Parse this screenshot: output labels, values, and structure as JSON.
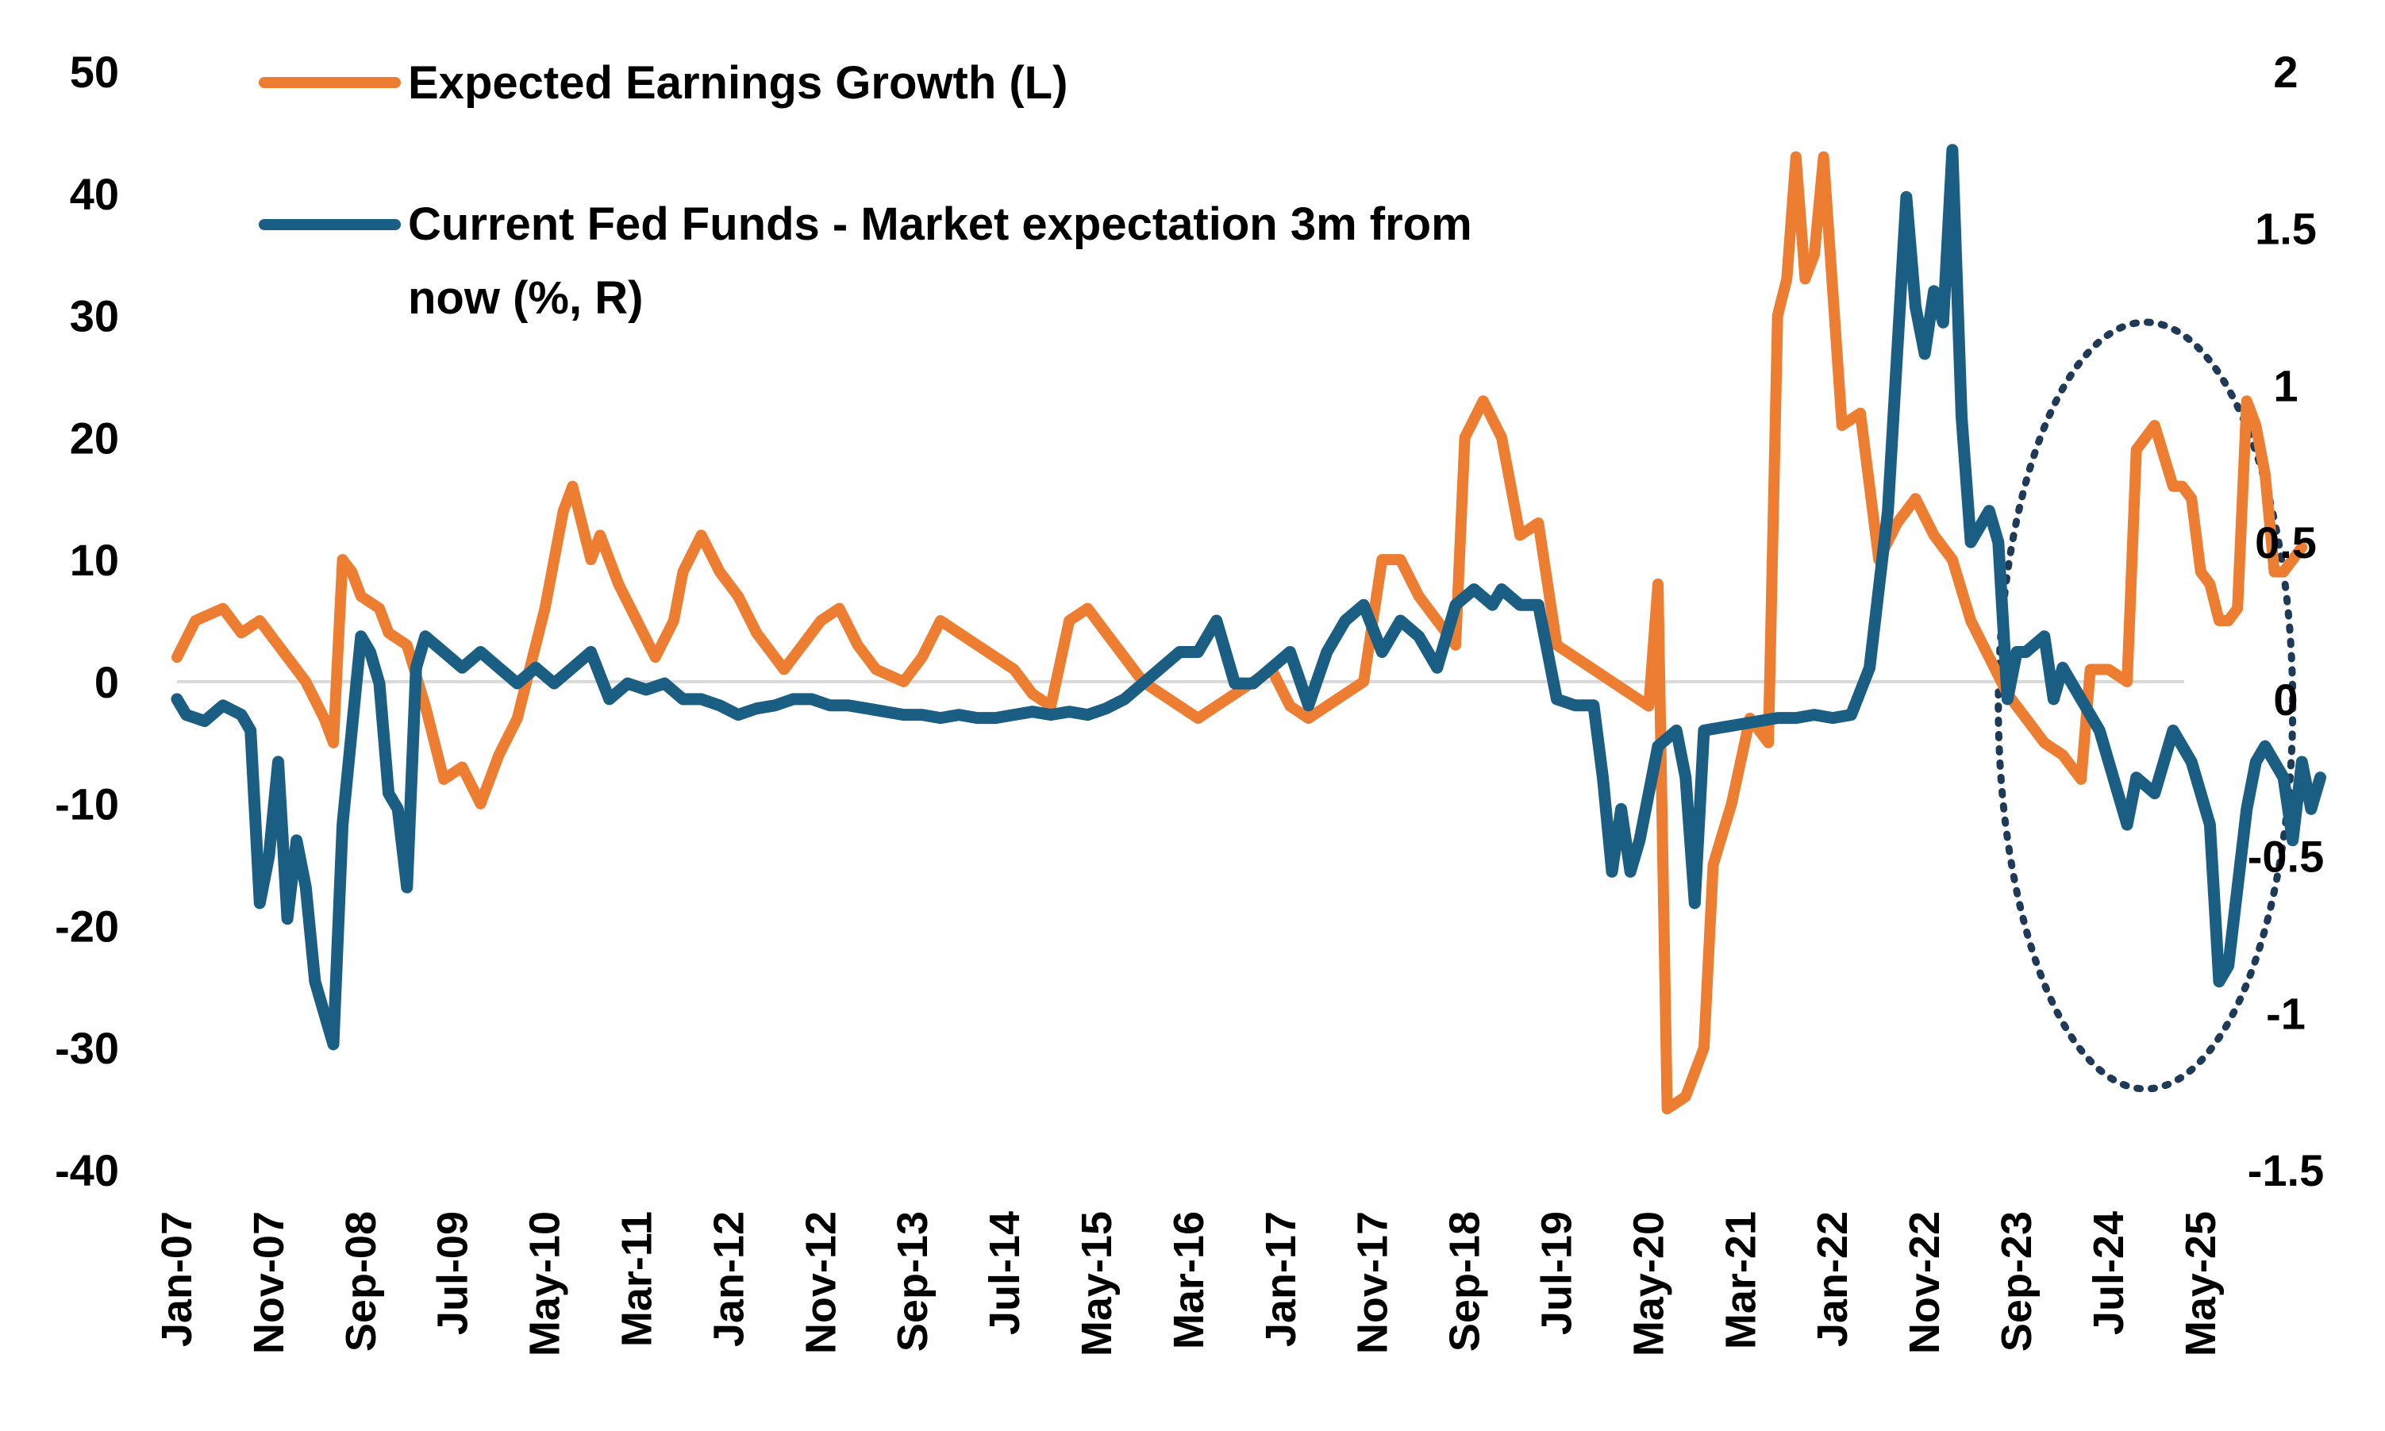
{
  "chart_data": {
    "type": "line",
    "legend_position": "top-left",
    "grid": false,
    "x_start": "Jan-07",
    "x_end": "Jul-25",
    "x_tick_labels": [
      "Jan-07",
      "Nov-07",
      "Sep-08",
      "Jul-09",
      "May-10",
      "Mar-11",
      "Jan-12",
      "Nov-12",
      "Sep-13",
      "Jul-14",
      "May-15",
      "Mar-16",
      "Jan-17",
      "Nov-17",
      "Sep-18",
      "Jul-19",
      "May-20",
      "Mar-21",
      "Jan-22",
      "Nov-22",
      "Sep-23",
      "Jul-24",
      "May-25"
    ],
    "y_left": {
      "min": -40,
      "max": 50,
      "ticks": [
        "50",
        "40",
        "30",
        "20",
        "10",
        "0",
        "-10",
        "-20",
        "-30",
        "-40"
      ]
    },
    "y_right": {
      "min": -1.5,
      "max": 2,
      "ticks": [
        "2",
        "1.5",
        "1",
        "0.5",
        "0",
        "-0.5",
        "-1",
        "-1.5"
      ]
    },
    "series": [
      {
        "name": "Expected Earnings Growth (L)",
        "axis": "left",
        "color": "#ED7D31",
        "points": [
          [
            "Jan-07",
            2
          ],
          [
            "Mar-07",
            5
          ],
          [
            "Jun-07",
            6
          ],
          [
            "Aug-07",
            4
          ],
          [
            "Oct-07",
            5
          ],
          [
            "Dec-07",
            3
          ],
          [
            "Mar-08",
            0
          ],
          [
            "May-08",
            -3
          ],
          [
            "Jun-08",
            -5
          ],
          [
            "Jul-08",
            10
          ],
          [
            "Aug-08",
            9
          ],
          [
            "Sep-08",
            7
          ],
          [
            "Nov-08",
            6
          ],
          [
            "Dec-08",
            4
          ],
          [
            "Feb-09",
            3
          ],
          [
            "Apr-09",
            -2
          ],
          [
            "Jun-09",
            -8
          ],
          [
            "Aug-09",
            -7
          ],
          [
            "Oct-09",
            -10
          ],
          [
            "Dec-09",
            -6
          ],
          [
            "Feb-10",
            -3
          ],
          [
            "May-10",
            6
          ],
          [
            "Jul-10",
            14
          ],
          [
            "Aug-10",
            16
          ],
          [
            "Oct-10",
            10
          ],
          [
            "Nov-10",
            12
          ],
          [
            "Jan-11",
            8
          ],
          [
            "Mar-11",
            5
          ],
          [
            "May-11",
            2
          ],
          [
            "Jul-11",
            5
          ],
          [
            "Aug-11",
            9
          ],
          [
            "Oct-11",
            12
          ],
          [
            "Dec-11",
            9
          ],
          [
            "Feb-12",
            7
          ],
          [
            "Apr-12",
            4
          ],
          [
            "Jul-12",
            1
          ],
          [
            "Sep-12",
            3
          ],
          [
            "Nov-12",
            5
          ],
          [
            "Jan-13",
            6
          ],
          [
            "Mar-13",
            3
          ],
          [
            "May-13",
            1
          ],
          [
            "Aug-13",
            0
          ],
          [
            "Oct-13",
            2
          ],
          [
            "Dec-13",
            5
          ],
          [
            "Feb-14",
            4
          ],
          [
            "Apr-14",
            3
          ],
          [
            "Jun-14",
            2
          ],
          [
            "Aug-14",
            1
          ],
          [
            "Oct-14",
            -1
          ],
          [
            "Dec-14",
            -2
          ],
          [
            "Feb-15",
            5
          ],
          [
            "Apr-15",
            6
          ],
          [
            "Jun-15",
            4
          ],
          [
            "Aug-15",
            2
          ],
          [
            "Oct-15",
            0
          ],
          [
            "Dec-15",
            -1
          ],
          [
            "Feb-16",
            -2
          ],
          [
            "Apr-16",
            -3
          ],
          [
            "Jun-16",
            -2
          ],
          [
            "Aug-16",
            -1
          ],
          [
            "Oct-16",
            0
          ],
          [
            "Dec-16",
            1
          ],
          [
            "Feb-17",
            -2
          ],
          [
            "Apr-17",
            -3
          ],
          [
            "Jun-17",
            -2
          ],
          [
            "Aug-17",
            -1
          ],
          [
            "Oct-17",
            0
          ],
          [
            "Dec-17",
            10
          ],
          [
            "Feb-18",
            10
          ],
          [
            "Apr-18",
            7
          ],
          [
            "Jun-18",
            5
          ],
          [
            "Aug-18",
            3
          ],
          [
            "Sep-18",
            20
          ],
          [
            "Nov-18",
            23
          ],
          [
            "Jan-19",
            20
          ],
          [
            "Mar-19",
            12
          ],
          [
            "May-19",
            13
          ],
          [
            "Jul-19",
            3
          ],
          [
            "Sep-19",
            2
          ],
          [
            "Nov-19",
            1
          ],
          [
            "Jan-20",
            0
          ],
          [
            "Mar-20",
            -1
          ],
          [
            "May-20",
            -2
          ],
          [
            "Jun-20",
            8
          ],
          [
            "Jul-20",
            -35
          ],
          [
            "Sep-20",
            -34
          ],
          [
            "Nov-20",
            -30
          ],
          [
            "Dec-20",
            -15
          ],
          [
            "Feb-21",
            -10
          ],
          [
            "Apr-21",
            -3
          ],
          [
            "Jun-21",
            -5
          ],
          [
            "Jul-21",
            30
          ],
          [
            "Aug-21",
            33
          ],
          [
            "Sep-21",
            43
          ],
          [
            "Oct-21",
            33
          ],
          [
            "Nov-21",
            35
          ],
          [
            "Dec-21",
            43
          ],
          [
            "Feb-22",
            21
          ],
          [
            "Apr-22",
            22
          ],
          [
            "Jun-22",
            10
          ],
          [
            "Aug-22",
            13
          ],
          [
            "Oct-22",
            15
          ],
          [
            "Dec-22",
            12
          ],
          [
            "Feb-23",
            10
          ],
          [
            "Apr-23",
            5
          ],
          [
            "Jun-23",
            2
          ],
          [
            "Aug-23",
            -1
          ],
          [
            "Oct-23",
            -3
          ],
          [
            "Dec-23",
            -5
          ],
          [
            "Feb-24",
            -6
          ],
          [
            "Apr-24",
            -8
          ],
          [
            "May-24",
            1
          ],
          [
            "Jul-24",
            1
          ],
          [
            "Sep-24",
            0
          ],
          [
            "Oct-24",
            19
          ],
          [
            "Nov-24",
            20
          ],
          [
            "Dec-24",
            21
          ],
          [
            "Feb-25",
            16
          ],
          [
            "Mar-25",
            16
          ],
          [
            "Apr-25",
            15
          ],
          [
            "May-25",
            9
          ],
          [
            "Jun-25",
            8
          ],
          [
            "Jul-25",
            5
          ],
          [
            "Aug-25",
            5
          ],
          [
            "Sep-25",
            6
          ],
          [
            "Oct-25",
            23
          ],
          [
            "Nov-25",
            21
          ],
          [
            "Dec-25",
            17
          ],
          [
            "Jan-26",
            9
          ],
          [
            "Feb-26",
            9
          ],
          [
            "Mar-26",
            10
          ],
          [
            "Apr-26",
            11
          ]
        ]
      },
      {
        "name": "Current Fed Funds - Market expectation 3m from now (%, R)",
        "axis": "right",
        "color": "#1B5E84",
        "points": [
          [
            "Jan-07",
            0.0
          ],
          [
            "Feb-07",
            -0.05
          ],
          [
            "Apr-07",
            -0.07
          ],
          [
            "Jun-07",
            -0.02
          ],
          [
            "Aug-07",
            -0.05
          ],
          [
            "Sep-07",
            -0.1
          ],
          [
            "Oct-07",
            -0.65
          ],
          [
            "Nov-07",
            -0.5
          ],
          [
            "Dec-07",
            -0.2
          ],
          [
            "Jan-08",
            -0.7
          ],
          [
            "Feb-08",
            -0.45
          ],
          [
            "Mar-08",
            -0.6
          ],
          [
            "Apr-08",
            -0.9
          ],
          [
            "Jun-08",
            -1.1
          ],
          [
            "Jul-08",
            -0.4
          ],
          [
            "Aug-08",
            -0.1
          ],
          [
            "Sep-08",
            0.2
          ],
          [
            "Oct-08",
            0.15
          ],
          [
            "Nov-08",
            0.05
          ],
          [
            "Dec-08",
            -0.3
          ],
          [
            "Jan-09",
            -0.35
          ],
          [
            "Feb-09",
            -0.6
          ],
          [
            "Mar-09",
            0.1
          ],
          [
            "Apr-09",
            0.2
          ],
          [
            "Jun-09",
            0.15
          ],
          [
            "Aug-09",
            0.1
          ],
          [
            "Oct-09",
            0.15
          ],
          [
            "Dec-09",
            0.1
          ],
          [
            "Feb-10",
            0.05
          ],
          [
            "Apr-10",
            0.1
          ],
          [
            "Jun-10",
            0.05
          ],
          [
            "Aug-10",
            0.1
          ],
          [
            "Oct-10",
            0.15
          ],
          [
            "Dec-10",
            0.0
          ],
          [
            "Feb-11",
            0.05
          ],
          [
            "Apr-11",
            0.03
          ],
          [
            "Jun-11",
            0.05
          ],
          [
            "Aug-11",
            0.0
          ],
          [
            "Oct-11",
            0.0
          ],
          [
            "Dec-11",
            -0.02
          ],
          [
            "Feb-12",
            -0.05
          ],
          [
            "Apr-12",
            -0.03
          ],
          [
            "Jun-12",
            -0.02
          ],
          [
            "Aug-12",
            0.0
          ],
          [
            "Oct-12",
            0.0
          ],
          [
            "Dec-12",
            -0.02
          ],
          [
            "Feb-13",
            -0.02
          ],
          [
            "Apr-13",
            -0.03
          ],
          [
            "Jun-13",
            -0.04
          ],
          [
            "Aug-13",
            -0.05
          ],
          [
            "Oct-13",
            -0.05
          ],
          [
            "Dec-13",
            -0.06
          ],
          [
            "Feb-14",
            -0.05
          ],
          [
            "Apr-14",
            -0.06
          ],
          [
            "Jun-14",
            -0.06
          ],
          [
            "Aug-14",
            -0.05
          ],
          [
            "Oct-14",
            -0.04
          ],
          [
            "Dec-14",
            -0.05
          ],
          [
            "Feb-15",
            -0.04
          ],
          [
            "Apr-15",
            -0.05
          ],
          [
            "Jun-15",
            -0.03
          ],
          [
            "Aug-15",
            0.0
          ],
          [
            "Oct-15",
            0.05
          ],
          [
            "Dec-15",
            0.1
          ],
          [
            "Feb-16",
            0.15
          ],
          [
            "Apr-16",
            0.15
          ],
          [
            "Jun-16",
            0.25
          ],
          [
            "Aug-16",
            0.05
          ],
          [
            "Oct-16",
            0.05
          ],
          [
            "Dec-16",
            0.1
          ],
          [
            "Feb-17",
            0.15
          ],
          [
            "Apr-17",
            -0.02
          ],
          [
            "Jun-17",
            0.15
          ],
          [
            "Aug-17",
            0.25
          ],
          [
            "Oct-17",
            0.3
          ],
          [
            "Dec-17",
            0.15
          ],
          [
            "Feb-18",
            0.25
          ],
          [
            "Apr-18",
            0.2
          ],
          [
            "Jun-18",
            0.1
          ],
          [
            "Aug-18",
            0.3
          ],
          [
            "Oct-18",
            0.35
          ],
          [
            "Dec-18",
            0.3
          ],
          [
            "Jan-19",
            0.35
          ],
          [
            "Mar-19",
            0.3
          ],
          [
            "May-19",
            0.3
          ],
          [
            "Jul-19",
            0.0
          ],
          [
            "Sep-19",
            -0.02
          ],
          [
            "Nov-19",
            -0.02
          ],
          [
            "Dec-19",
            -0.25
          ],
          [
            "Jan-20",
            -0.55
          ],
          [
            "Feb-20",
            -0.35
          ],
          [
            "Mar-20",
            -0.55
          ],
          [
            "Apr-20",
            -0.45
          ],
          [
            "Jun-20",
            -0.15
          ],
          [
            "Aug-20",
            -0.1
          ],
          [
            "Sep-20",
            -0.25
          ],
          [
            "Oct-20",
            -0.65
          ],
          [
            "Nov-20",
            -0.1
          ],
          [
            "Jan-21",
            -0.09
          ],
          [
            "Mar-21",
            -0.08
          ],
          [
            "May-21",
            -0.07
          ],
          [
            "Jul-21",
            -0.06
          ],
          [
            "Sep-21",
            -0.06
          ],
          [
            "Nov-21",
            -0.05
          ],
          [
            "Jan-22",
            -0.06
          ],
          [
            "Mar-22",
            -0.05
          ],
          [
            "May-22",
            0.1
          ],
          [
            "Jul-22",
            0.6
          ],
          [
            "Sep-22",
            1.6
          ],
          [
            "Oct-22",
            1.25
          ],
          [
            "Nov-22",
            1.1
          ],
          [
            "Dec-22",
            1.3
          ],
          [
            "Jan-23",
            1.2
          ],
          [
            "Feb-23",
            1.75
          ],
          [
            "Mar-23",
            0.9
          ],
          [
            "Apr-23",
            0.5
          ],
          [
            "Jun-23",
            0.6
          ],
          [
            "Jul-23",
            0.5
          ],
          [
            "Aug-23",
            0.0
          ],
          [
            "Sep-23",
            0.15
          ],
          [
            "Oct-23",
            0.15
          ],
          [
            "Dec-23",
            0.2
          ],
          [
            "Jan-24",
            0.0
          ],
          [
            "Feb-24",
            0.1
          ],
          [
            "Apr-24",
            0.0
          ],
          [
            "Jun-24",
            -0.1
          ],
          [
            "Aug-24",
            -0.3
          ],
          [
            "Sep-24",
            -0.4
          ],
          [
            "Oct-24",
            -0.25
          ],
          [
            "Dec-24",
            -0.3
          ],
          [
            "Feb-25",
            -0.1
          ],
          [
            "Apr-25",
            -0.2
          ],
          [
            "Jun-25",
            -0.4
          ],
          [
            "Jul-25",
            -0.9
          ],
          [
            "Aug-25",
            -0.85
          ],
          [
            "Sep-25",
            -0.6
          ],
          [
            "Oct-25",
            -0.35
          ],
          [
            "Nov-25",
            -0.2
          ],
          [
            "Dec-25",
            -0.15
          ],
          [
            "Feb-26",
            -0.25
          ],
          [
            "Mar-26",
            -0.45
          ],
          [
            "Apr-26",
            -0.2
          ],
          [
            "May-26",
            -0.35
          ],
          [
            "Jun-26",
            -0.25
          ]
        ]
      }
    ],
    "annotation": {
      "shape": "dotted-ellipse",
      "color": "#1F3A56",
      "x_from": "Jul-23",
      "x_to": "Mar-26"
    }
  }
}
